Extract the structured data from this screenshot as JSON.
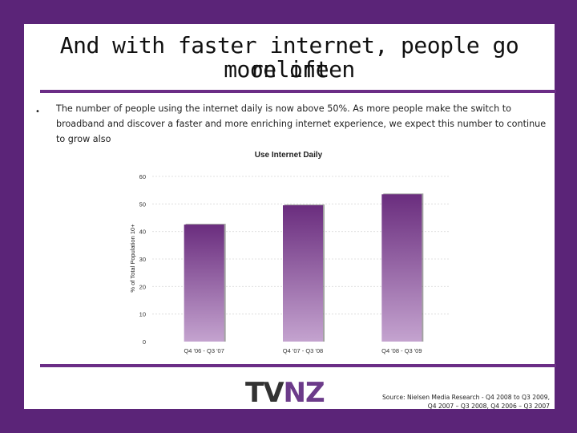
{
  "slide": {
    "title_line1": "And with faster internet, people go online",
    "title_line2": "more often",
    "bullet": "The number of people using the internet daily is now above 50%.  As more people make the switch to broadband and discover a faster and more enriching internet experience, we expect this number to continue to grow also",
    "logo_tv": "TV",
    "logo_nz": "NZ",
    "source_line1": "Source: Nielsen Media Research - Q4 2008 to Q3 2009,",
    "source_line2": "Q4 2007 – Q3 2008, Q4 2006 – Q3 2007"
  },
  "chart_data": {
    "type": "bar",
    "title": "Use Internet Daily",
    "ylabel": "% of Total Population 10+",
    "xlabel": "",
    "categories": [
      "Q4 '06 - Q3 '07",
      "Q4 '07 - Q3 '08",
      "Q4 '08 - Q3 '09"
    ],
    "values": [
      42.5,
      49.5,
      53.5
    ],
    "ylim": [
      0,
      60
    ],
    "yticks": [
      0,
      10,
      20,
      30,
      40,
      50,
      60
    ],
    "grid": true,
    "colors": {
      "bar_top": "#6a2d7e",
      "bar_bottom": "#c4a3cf"
    }
  }
}
